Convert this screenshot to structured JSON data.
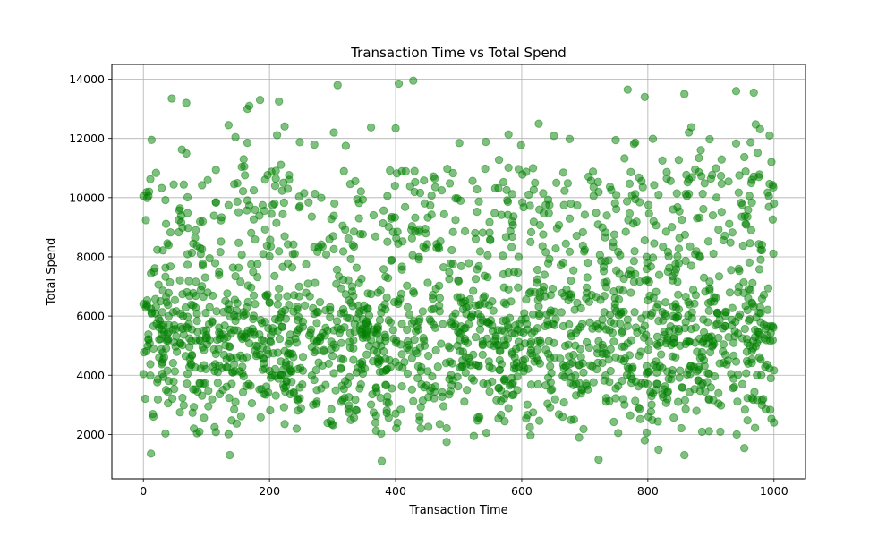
{
  "chart_data": {
    "type": "scatter",
    "title": "Transaction Time vs Total Spend",
    "xlabel": "Transaction Time",
    "ylabel": "Total Spend",
    "xlim": [
      -50,
      1050
    ],
    "ylim": [
      500,
      14500
    ],
    "xticks": [
      0,
      200,
      400,
      600,
      800,
      1000
    ],
    "yticks": [
      2000,
      4000,
      6000,
      8000,
      10000,
      12000,
      14000
    ],
    "grid": true,
    "point_color": "#008000",
    "point_alpha": 0.5,
    "n_points": 2000,
    "x_range": [
      0,
      1000
    ],
    "y_range": [
      1100,
      13950
    ],
    "density_note": "denser between 2000 and 7000, sparser toward 13000+",
    "sample_points": [
      {
        "x": 0,
        "y": 10050
      },
      {
        "x": 12,
        "y": 1350
      },
      {
        "x": 13,
        "y": 11950
      },
      {
        "x": 45,
        "y": 13350
      },
      {
        "x": 68,
        "y": 13200
      },
      {
        "x": 135,
        "y": 12450
      },
      {
        "x": 165,
        "y": 13000
      },
      {
        "x": 168,
        "y": 13100
      },
      {
        "x": 185,
        "y": 13300
      },
      {
        "x": 215,
        "y": 13250
      },
      {
        "x": 308,
        "y": 13800
      },
      {
        "x": 378,
        "y": 1100
      },
      {
        "x": 405,
        "y": 13850
      },
      {
        "x": 428,
        "y": 13950
      },
      {
        "x": 722,
        "y": 1150
      },
      {
        "x": 768,
        "y": 13650
      },
      {
        "x": 795,
        "y": 13400
      },
      {
        "x": 858,
        "y": 13500
      },
      {
        "x": 858,
        "y": 1300
      },
      {
        "x": 940,
        "y": 13600
      },
      {
        "x": 968,
        "y": 13550
      },
      {
        "x": 1000,
        "y": 9800
      },
      {
        "x": 1000,
        "y": 2400
      }
    ]
  }
}
